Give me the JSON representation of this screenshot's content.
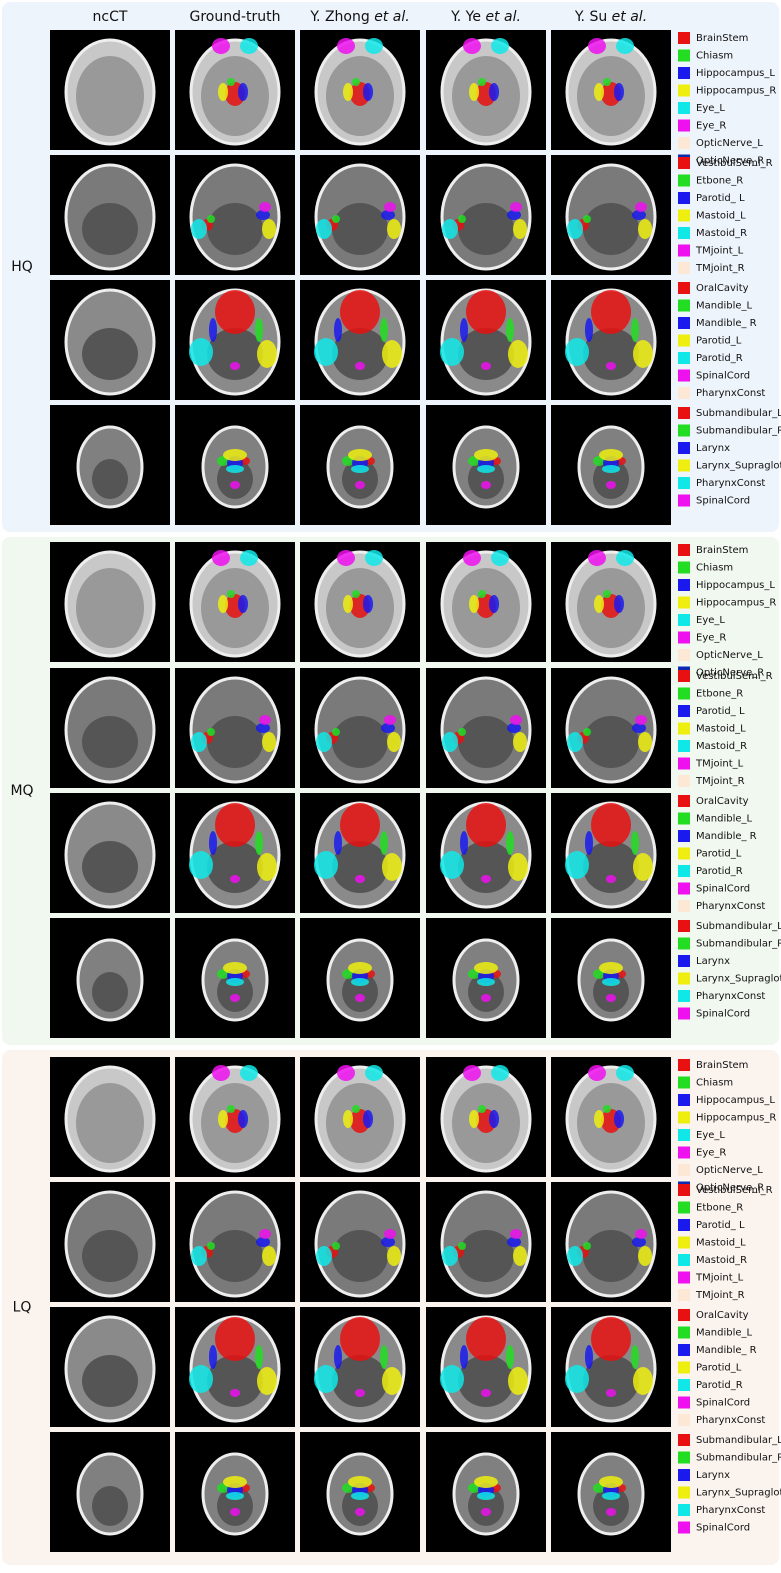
{
  "columns": [
    {
      "text": "ncCT"
    },
    {
      "text": "Ground-truth"
    },
    {
      "text": "Y. Zhong",
      "italic": "et al."
    },
    {
      "text": "Y. Ye",
      "italic": "et al."
    },
    {
      "text": "Y. Su",
      "italic": "et al."
    }
  ],
  "groups": [
    {
      "label": "HQ",
      "rows": [
        {
          "legend": [
            {
              "name": "BrainStem",
              "color": "#e81010"
            },
            {
              "name": "Chiasm",
              "color": "#22dd22"
            },
            {
              "name": "Hippocampus_L",
              "color": "#1a1aee"
            },
            {
              "name": "Hippocampus_R",
              "color": "#eeee10"
            },
            {
              "name": "Eye_L",
              "color": "#10e8e8"
            },
            {
              "name": "Eye_R",
              "color": "#ee10ee"
            },
            {
              "name": "OpticNerve_L",
              "color": "#fde8d6"
            },
            {
              "name": "OpticNerve_R",
              "color": "#0a2ab0"
            }
          ]
        },
        {
          "legend": [
            {
              "name": "VestibulSemi_R",
              "color": "#e81010"
            },
            {
              "name": "Etbone_R",
              "color": "#22dd22"
            },
            {
              "name": "Parotid_ L",
              "color": "#1a1aee"
            },
            {
              "name": "Mastoid_L",
              "color": "#eeee10"
            },
            {
              "name": "Mastoid_R",
              "color": "#10e8e8"
            },
            {
              "name": "TMjoint_L",
              "color": "#ee10ee"
            },
            {
              "name": "TMjoint_R",
              "color": "#fde8d6"
            }
          ]
        },
        {
          "legend": [
            {
              "name": "OralCavity",
              "color": "#e81010"
            },
            {
              "name": "Mandible_L",
              "color": "#22dd22"
            },
            {
              "name": "Mandible_ R",
              "color": "#1a1aee"
            },
            {
              "name": "Parotid_L",
              "color": "#eeee10"
            },
            {
              "name": "Parotid_R",
              "color": "#10e8e8"
            },
            {
              "name": "SpinalCord",
              "color": "#ee10ee"
            },
            {
              "name": "PharynxConst",
              "color": "#fde8d6"
            }
          ]
        },
        {
          "legend": [
            {
              "name": "Submandibular_L",
              "color": "#e81010"
            },
            {
              "name": "Submandibular_R",
              "color": "#22dd22"
            },
            {
              "name": "Larynx",
              "color": "#1a1aee"
            },
            {
              "name": "Larynx_Supraglot",
              "color": "#eeee10"
            },
            {
              "name": "PharynxConst",
              "color": "#10e8e8"
            },
            {
              "name": "SpinalCord",
              "color": "#ee10ee"
            }
          ]
        }
      ]
    },
    {
      "label": "MQ",
      "rows": [
        {
          "legend": [
            {
              "name": "BrainStem",
              "color": "#e81010"
            },
            {
              "name": "Chiasm",
              "color": "#22dd22"
            },
            {
              "name": "Hippocampus_L",
              "color": "#1a1aee"
            },
            {
              "name": "Hippocampus_R",
              "color": "#eeee10"
            },
            {
              "name": "Eye_L",
              "color": "#10e8e8"
            },
            {
              "name": "Eye_R",
              "color": "#ee10ee"
            },
            {
              "name": "OpticNerve_L",
              "color": "#fde8d6"
            },
            {
              "name": "OpticNerve_R",
              "color": "#0a2ab0"
            }
          ]
        },
        {
          "legend": [
            {
              "name": "VestibulSemi_R",
              "color": "#e81010"
            },
            {
              "name": "Etbone_R",
              "color": "#22dd22"
            },
            {
              "name": "Parotid_ L",
              "color": "#1a1aee"
            },
            {
              "name": "Mastoid_L",
              "color": "#eeee10"
            },
            {
              "name": "Mastoid_R",
              "color": "#10e8e8"
            },
            {
              "name": "TMjoint_L",
              "color": "#ee10ee"
            },
            {
              "name": "TMjoint_R",
              "color": "#fde8d6"
            }
          ]
        },
        {
          "legend": [
            {
              "name": "OralCavity",
              "color": "#e81010"
            },
            {
              "name": "Mandible_L",
              "color": "#22dd22"
            },
            {
              "name": "Mandible_ R",
              "color": "#1a1aee"
            },
            {
              "name": "Parotid_L",
              "color": "#eeee10"
            },
            {
              "name": "Parotid_R",
              "color": "#10e8e8"
            },
            {
              "name": "SpinalCord",
              "color": "#ee10ee"
            },
            {
              "name": "PharynxConst",
              "color": "#fde8d6"
            }
          ]
        },
        {
          "legend": [
            {
              "name": "Submandibular_L",
              "color": "#e81010"
            },
            {
              "name": "Submandibular_R",
              "color": "#22dd22"
            },
            {
              "name": "Larynx",
              "color": "#1a1aee"
            },
            {
              "name": "Larynx_Supraglot",
              "color": "#eeee10"
            },
            {
              "name": "PharynxConst",
              "color": "#10e8e8"
            },
            {
              "name": "SpinalCord",
              "color": "#ee10ee"
            }
          ]
        }
      ]
    },
    {
      "label": "LQ",
      "rows": [
        {
          "legend": [
            {
              "name": "BrainStem",
              "color": "#e81010"
            },
            {
              "name": "Chiasm",
              "color": "#22dd22"
            },
            {
              "name": "Hippocampus_L",
              "color": "#1a1aee"
            },
            {
              "name": "Hippocampus_R",
              "color": "#eeee10"
            },
            {
              "name": "Eye_L",
              "color": "#10e8e8"
            },
            {
              "name": "Eye_R",
              "color": "#ee10ee"
            },
            {
              "name": "OpticNerve_L",
              "color": "#fde8d6"
            },
            {
              "name": "OpticNerve_R",
              "color": "#0a2ab0"
            }
          ]
        },
        {
          "legend": [
            {
              "name": "VestibulSemi_R",
              "color": "#e81010"
            },
            {
              "name": "Etbone_R",
              "color": "#22dd22"
            },
            {
              "name": "Parotid_ L",
              "color": "#1a1aee"
            },
            {
              "name": "Mastoid_L",
              "color": "#eeee10"
            },
            {
              "name": "Mastoid_R",
              "color": "#10e8e8"
            },
            {
              "name": "TMjoint_L",
              "color": "#ee10ee"
            },
            {
              "name": "TMjoint_R",
              "color": "#fde8d6"
            }
          ]
        },
        {
          "legend": [
            {
              "name": "OralCavity",
              "color": "#e81010"
            },
            {
              "name": "Mandible_L",
              "color": "#22dd22"
            },
            {
              "name": "Mandible_ R",
              "color": "#1a1aee"
            },
            {
              "name": "Parotid_L",
              "color": "#eeee10"
            },
            {
              "name": "Parotid_R",
              "color": "#10e8e8"
            },
            {
              "name": "SpinalCord",
              "color": "#ee10ee"
            },
            {
              "name": "PharynxConst",
              "color": "#fde8d6"
            }
          ]
        },
        {
          "legend": [
            {
              "name": "Submandibular_L",
              "color": "#e81010"
            },
            {
              "name": "Submandibular_R",
              "color": "#22dd22"
            },
            {
              "name": "Larynx",
              "color": "#1a1aee"
            },
            {
              "name": "Larynx_Supraglot",
              "color": "#eeee10"
            },
            {
              "name": "PharynxConst",
              "color": "#10e8e8"
            },
            {
              "name": "SpinalCord",
              "color": "#ee10ee"
            }
          ]
        }
      ]
    }
  ]
}
